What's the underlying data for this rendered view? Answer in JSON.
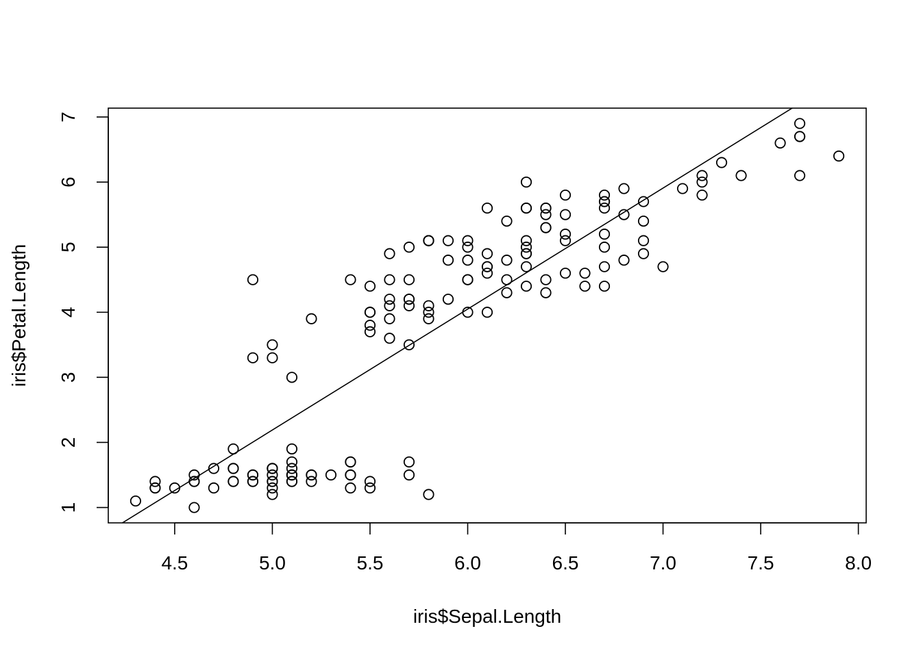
{
  "chart_data": {
    "type": "scatter",
    "title": "",
    "xlabel": "iris$Sepal.Length",
    "ylabel": "iris$Petal.Length",
    "xlim": [
      4.16,
      8.04
    ],
    "ylim": [
      0.764,
      7.136
    ],
    "xticks": [
      4.5,
      5.0,
      5.5,
      6.0,
      6.5,
      7.0,
      7.5,
      8.0
    ],
    "xtick_labels": [
      "4.5",
      "5.0",
      "5.5",
      "6.0",
      "6.5",
      "7.0",
      "7.5",
      "8.0"
    ],
    "yticks": [
      1,
      2,
      3,
      4,
      5,
      6,
      7
    ],
    "ytick_labels": [
      "1",
      "2",
      "3",
      "4",
      "5",
      "6",
      "7"
    ],
    "grid": false,
    "series": [
      {
        "x": [
          5.1,
          4.9,
          4.7,
          4.6,
          5.0,
          5.4,
          4.6,
          5.0,
          4.4,
          4.9,
          5.4,
          4.8,
          4.8,
          4.3,
          5.8,
          5.7,
          5.4,
          5.1,
          5.7,
          5.1,
          5.4,
          5.1,
          4.6,
          5.1,
          4.8,
          5.0,
          5.0,
          5.2,
          5.2,
          4.7,
          4.8,
          5.4,
          5.2,
          5.5,
          4.9,
          5.0,
          5.5,
          4.9,
          4.4,
          5.1,
          5.0,
          4.5,
          4.4,
          5.0,
          5.1,
          4.8,
          5.1,
          4.6,
          5.3,
          5.0,
          7.0,
          6.4,
          6.9,
          5.5,
          6.5,
          5.7,
          6.3,
          4.9,
          6.6,
          5.2,
          5.0,
          5.9,
          6.0,
          6.1,
          5.6,
          6.7,
          5.6,
          5.8,
          6.2,
          5.6,
          5.9,
          6.1,
          6.3,
          6.1,
          6.4,
          6.6,
          6.8,
          6.7,
          6.0,
          5.7,
          5.5,
          5.5,
          5.8,
          6.0,
          5.4,
          6.0,
          6.7,
          6.3,
          5.6,
          5.5,
          5.5,
          6.1,
          5.8,
          5.0,
          5.6,
          5.7,
          5.7,
          6.2,
          5.1,
          5.7,
          6.3,
          5.8,
          7.1,
          6.3,
          6.5,
          7.6,
          4.9,
          7.3,
          6.7,
          7.2,
          6.5,
          6.4,
          6.8,
          5.7,
          5.8,
          6.4,
          6.5,
          7.7,
          7.7,
          6.0,
          6.9,
          5.6,
          7.7,
          6.3,
          6.7,
          7.2,
          6.2,
          6.1,
          6.4,
          7.2,
          7.4,
          7.9,
          6.4,
          6.3,
          6.1,
          7.7,
          6.3,
          6.4,
          6.0,
          6.9,
          6.7,
          6.9,
          5.8,
          6.8,
          6.7,
          6.7,
          6.3,
          6.5,
          6.2,
          5.9
        ],
        "y": [
          1.4,
          1.4,
          1.3,
          1.5,
          1.4,
          1.7,
          1.4,
          1.5,
          1.4,
          1.5,
          1.5,
          1.6,
          1.4,
          1.1,
          1.2,
          1.5,
          1.3,
          1.4,
          1.7,
          1.5,
          1.7,
          1.5,
          1.0,
          1.7,
          1.9,
          1.6,
          1.6,
          1.5,
          1.4,
          1.6,
          1.6,
          1.5,
          1.5,
          1.4,
          1.5,
          1.2,
          1.3,
          1.4,
          1.3,
          1.5,
          1.3,
          1.3,
          1.3,
          1.6,
          1.9,
          1.4,
          1.6,
          1.4,
          1.5,
          1.4,
          4.7,
          4.5,
          4.9,
          4.0,
          4.6,
          4.5,
          4.7,
          3.3,
          4.6,
          3.9,
          3.5,
          4.2,
          4.0,
          4.7,
          3.6,
          4.4,
          4.5,
          4.1,
          4.5,
          3.9,
          4.8,
          4.0,
          4.9,
          4.7,
          4.3,
          4.4,
          4.8,
          5.0,
          4.5,
          3.5,
          3.8,
          3.7,
          3.9,
          5.1,
          4.5,
          4.5,
          4.7,
          4.4,
          4.1,
          4.0,
          4.4,
          4.6,
          4.0,
          3.3,
          4.2,
          4.2,
          4.2,
          4.3,
          3.0,
          4.1,
          6.0,
          5.1,
          5.9,
          5.6,
          5.8,
          6.6,
          4.5,
          6.3,
          5.8,
          6.1,
          5.1,
          5.3,
          5.5,
          5.0,
          5.1,
          5.3,
          5.5,
          6.7,
          6.9,
          5.0,
          5.7,
          4.9,
          6.7,
          4.9,
          5.7,
          6.0,
          4.8,
          4.9,
          5.6,
          5.8,
          6.1,
          6.4,
          5.6,
          5.1,
          5.6,
          6.1,
          5.6,
          5.5,
          4.8,
          5.4,
          5.6,
          5.1,
          5.1,
          5.9,
          5.7,
          5.2,
          5.0,
          5.2,
          5.4,
          5.1
        ]
      }
    ],
    "regression_line": {
      "intercept": -7.101443,
      "slope": 1.858433
    }
  }
}
